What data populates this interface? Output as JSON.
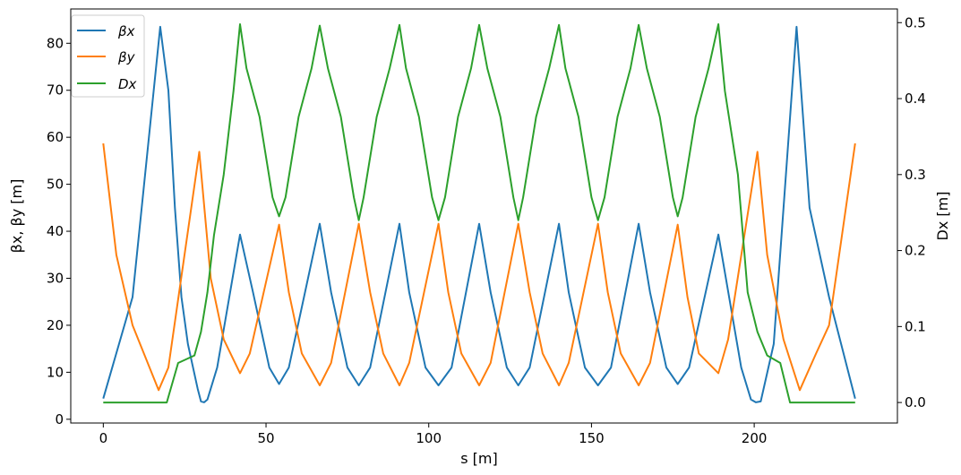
{
  "chart_data": {
    "type": "line",
    "xlabel": "s [m]",
    "ylabel_left": "βx, βy [m]",
    "ylabel_right": "Dx [m]",
    "xlim": [
      -10,
      244
    ],
    "ylim_left": [
      -0.8,
      87.3
    ],
    "ylim_right": [
      -0.027,
      0.518
    ],
    "xticks": [
      0,
      50,
      100,
      150,
      200
    ],
    "yticks_left": [
      0,
      10,
      20,
      30,
      40,
      50,
      60,
      70,
      80
    ],
    "yticks_right": [
      0.0,
      0.1,
      0.2,
      0.3,
      0.4,
      0.5
    ],
    "grid": false,
    "legend": {
      "placement": "top-left",
      "entries": [
        "beta_x",
        "beta_y",
        "D_x"
      ]
    },
    "series": [
      {
        "key": "beta_x",
        "name": "βx",
        "axis": "left",
        "color": "#1f77b4",
        "x": [
          0,
          9,
          17.5,
          20,
          22,
          24,
          26,
          29,
          30,
          31,
          32,
          35,
          42,
          46,
          51,
          54,
          57,
          66.5,
          70,
          75,
          78.5,
          82,
          91,
          94,
          99,
          103,
          107,
          115.5,
          119,
          124,
          127.5,
          131,
          140,
          143,
          148,
          152,
          156,
          164.5,
          168,
          173,
          176.5,
          180,
          189,
          196,
          199,
          200.5,
          202,
          206,
          213,
          217,
          223,
          231
        ],
        "y": [
          4.4,
          26,
          83.5,
          70,
          45,
          26,
          16,
          6.5,
          3.8,
          3.6,
          4.2,
          11,
          39.3,
          27,
          11,
          7.5,
          11,
          41.6,
          27,
          11,
          7.2,
          11,
          41.6,
          27,
          11,
          7.2,
          11,
          41.6,
          27,
          11,
          7.2,
          11,
          41.6,
          27,
          11,
          7.2,
          11,
          41.6,
          27,
          11,
          7.5,
          11,
          39.3,
          11,
          4.2,
          3.6,
          3.8,
          16,
          83.5,
          45,
          26,
          4.4
        ]
      },
      {
        "key": "beta_y",
        "name": "βy",
        "axis": "left",
        "color": "#ff7f0e",
        "x": [
          0,
          4,
          9,
          17,
          20,
          29.5,
          33,
          37,
          42,
          45,
          54,
          57,
          61,
          66.5,
          70,
          78.5,
          82,
          86,
          91,
          94,
          103,
          106,
          110,
          115.5,
          119,
          127.5,
          131,
          135,
          140,
          143,
          152,
          155,
          159,
          164.5,
          168,
          176.5,
          179.5,
          183,
          189,
          192,
          201,
          204,
          209,
          214,
          219,
          223,
          231
        ],
        "y": [
          58.7,
          35,
          20,
          6.2,
          11,
          56.9,
          30,
          17,
          9.8,
          14,
          41.4,
          27,
          14,
          7.2,
          12,
          41.6,
          27,
          14,
          7.2,
          12,
          41.6,
          27,
          14,
          7.2,
          12,
          41.6,
          27,
          14,
          7.2,
          12,
          41.6,
          27,
          14,
          7.2,
          12,
          41.4,
          26,
          14,
          9.8,
          17,
          56.9,
          35,
          17,
          6.2,
          14,
          20,
          58.7
        ]
      },
      {
        "key": "D_x",
        "name": "Dx",
        "axis": "right",
        "color": "#2ca02c",
        "x": [
          0,
          19.5,
          23,
          28,
          30,
          32,
          34,
          37,
          40,
          42,
          44,
          48,
          52,
          54,
          56,
          60,
          64,
          66.5,
          69,
          73,
          77,
          78.5,
          80,
          84,
          88,
          91,
          93,
          97,
          101,
          103,
          105,
          109,
          113,
          115.5,
          118,
          122,
          126,
          127.5,
          129,
          133,
          137,
          140,
          142,
          146,
          150,
          152,
          154,
          158,
          162,
          164.5,
          167,
          171,
          175,
          176.5,
          178,
          182,
          186,
          189,
          191,
          195,
          198,
          201,
          204,
          208,
          211,
          231
        ],
        "y": [
          0,
          0,
          0.052,
          0.062,
          0.093,
          0.145,
          0.22,
          0.3,
          0.41,
          0.498,
          0.44,
          0.376,
          0.27,
          0.245,
          0.27,
          0.376,
          0.44,
          0.496,
          0.44,
          0.376,
          0.27,
          0.24,
          0.27,
          0.376,
          0.44,
          0.497,
          0.44,
          0.376,
          0.27,
          0.24,
          0.27,
          0.376,
          0.44,
          0.497,
          0.44,
          0.376,
          0.27,
          0.24,
          0.27,
          0.376,
          0.44,
          0.497,
          0.44,
          0.376,
          0.27,
          0.24,
          0.27,
          0.376,
          0.44,
          0.497,
          0.44,
          0.376,
          0.27,
          0.245,
          0.27,
          0.376,
          0.44,
          0.498,
          0.41,
          0.3,
          0.145,
          0.093,
          0.062,
          0.052,
          0,
          0
        ]
      }
    ]
  }
}
